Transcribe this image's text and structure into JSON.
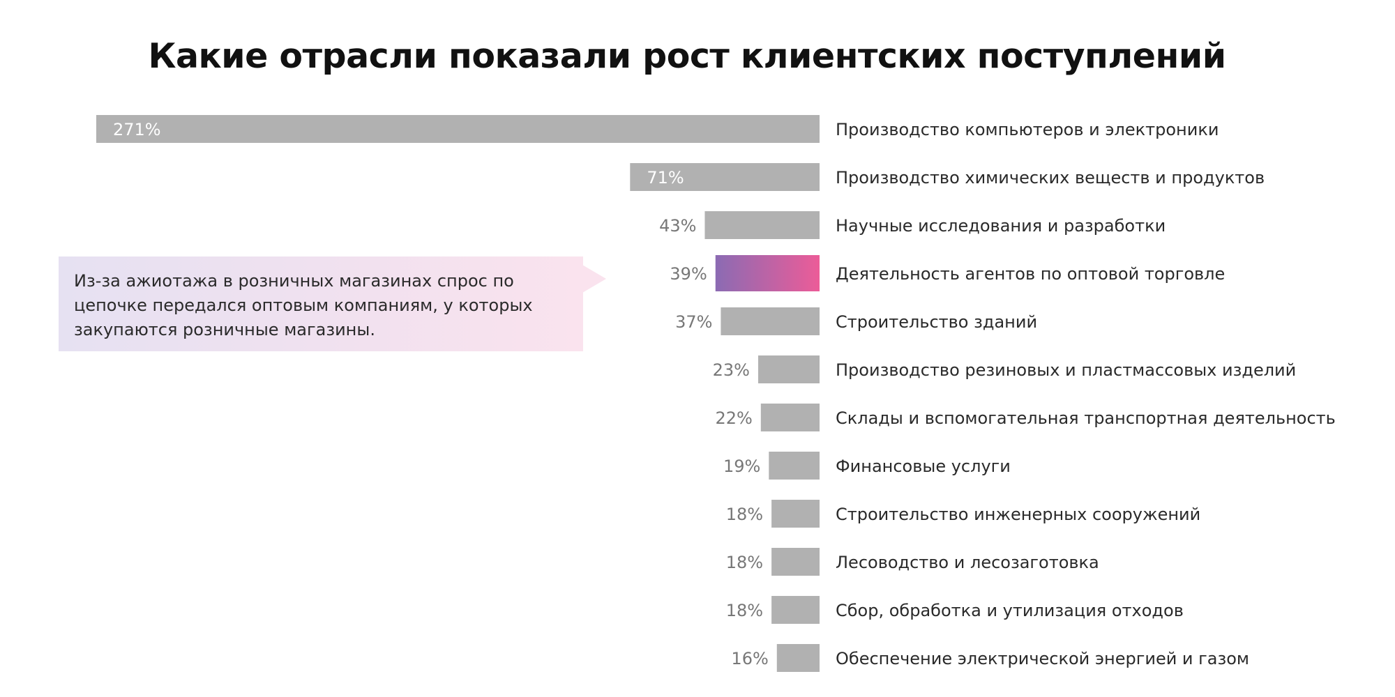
{
  "title": "Какие отрасли показали рост клиентских поступлений",
  "callout": {
    "text": "Из-за ажиотажа в розничных магазинах спрос по цепочке передался оптовым компаниям, у которых закупаются розничные магазины."
  },
  "colors": {
    "bar": "#b1b1b1",
    "highlight_start": "#8b6bb3",
    "highlight_end": "#ec5c98",
    "value_label": "#777777",
    "category_label": "#2a2a2a"
  },
  "chart_data": {
    "type": "bar",
    "orientation": "horizontal",
    "title": "Какие отрасли показали рост клиентских поступлений",
    "xlabel": "",
    "ylabel": "",
    "grid": false,
    "highlighted_category": "Деятельность агентов по оптовой торговле",
    "categories": [
      "Производство компьютеров и электроники",
      "Производство химических веществ и продуктов",
      "Научные исследования и разработки",
      "Деятельность агентов по оптовой торговле",
      "Строительство зданий",
      "Производство резиновых и пластмассовых изделий",
      "Склады и вспомогательная транспортная деятельность",
      "Финансовые услуги",
      "Строительство инженерных сооружений",
      "Лесоводство и лесозаготовка",
      "Сбор, обработка и утилизация отходов",
      "Обеспечение электрической энергией и газом"
    ],
    "values": [
      271,
      71,
      43,
      39,
      37,
      23,
      22,
      19,
      18,
      18,
      18,
      16
    ],
    "value_labels": [
      "271%",
      "71%",
      "43%",
      "39%",
      "37%",
      "23%",
      "22%",
      "19%",
      "18%",
      "18%",
      "18%",
      "16%"
    ],
    "unit": "%"
  }
}
